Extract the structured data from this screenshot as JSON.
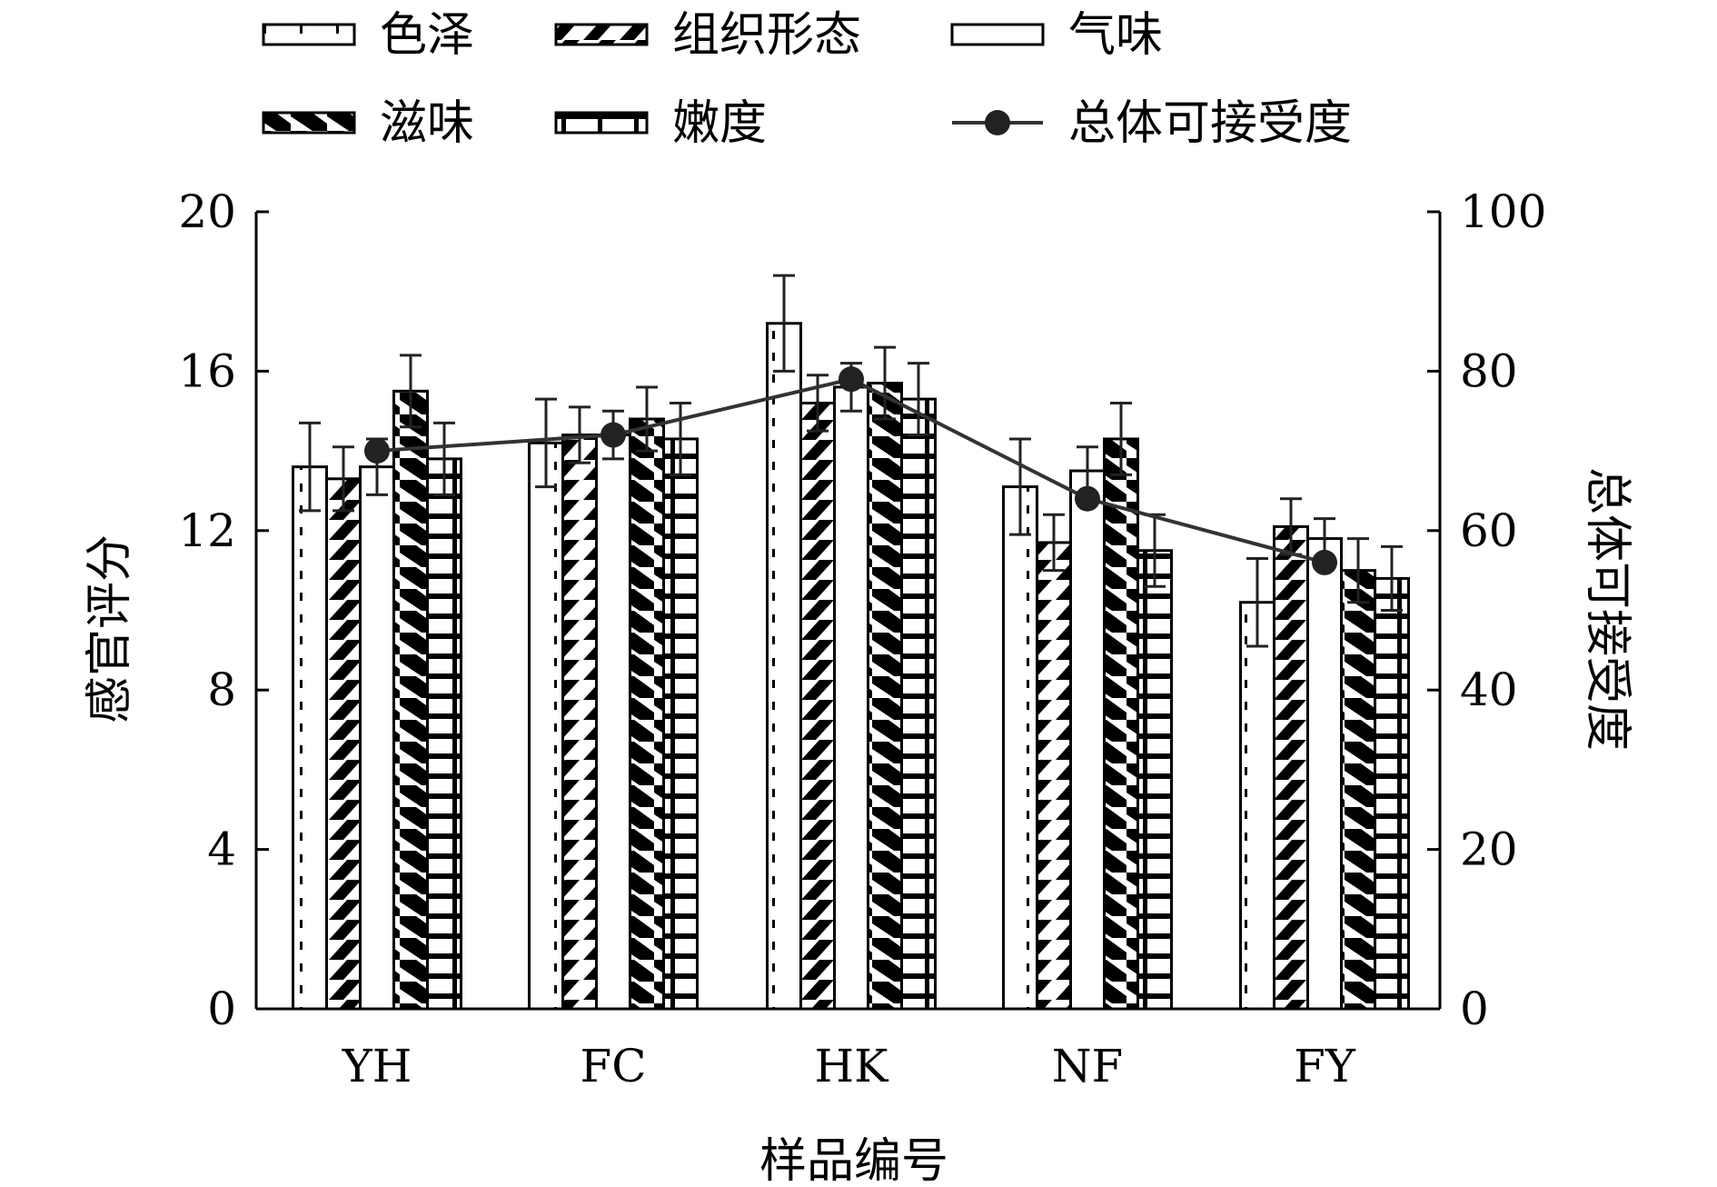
{
  "chart_data": {
    "type": "bar",
    "categories": [
      "YH",
      "FC",
      "HK",
      "NF",
      "FY"
    ],
    "xlabel": "样品编号",
    "ylabel": "感官评分",
    "y2label": "总体可接受度",
    "ylim": [
      0,
      20
    ],
    "y2lim": [
      0,
      100
    ],
    "yticks": [
      "0",
      "4",
      "8",
      "12",
      "16",
      "20"
    ],
    "y2ticks": [
      "0",
      "20",
      "40",
      "60",
      "80",
      "100"
    ],
    "legend_position": "top",
    "series": [
      {
        "name": "色泽",
        "pattern": "dots",
        "values": [
          13.6,
          14.2,
          17.2,
          13.1,
          10.2
        ],
        "errors": [
          1.1,
          1.1,
          1.2,
          1.2,
          1.1
        ]
      },
      {
        "name": "组织形态",
        "pattern": "diagonal",
        "values": [
          13.3,
          14.4,
          15.2,
          11.7,
          12.1
        ],
        "errors": [
          0.8,
          0.7,
          0.7,
          0.7,
          0.7
        ]
      },
      {
        "name": "气味",
        "pattern": "blank",
        "values": [
          13.6,
          14.4,
          15.6,
          13.5,
          11.8
        ],
        "errors": [
          0.7,
          0.6,
          0.6,
          0.6,
          0.5
        ]
      },
      {
        "name": "滋味",
        "pattern": "zigzag",
        "values": [
          15.5,
          14.8,
          15.7,
          14.3,
          11.0
        ],
        "errors": [
          0.9,
          0.8,
          0.9,
          0.9,
          0.8
        ]
      },
      {
        "name": "嫩度",
        "pattern": "brick",
        "values": [
          13.8,
          14.3,
          15.3,
          11.5,
          10.8
        ],
        "errors": [
          0.9,
          0.9,
          0.9,
          0.9,
          0.8
        ]
      }
    ],
    "line_series": {
      "name": "总体可接受度",
      "axis": "right",
      "values": [
        70,
        72,
        79,
        64,
        56
      ]
    }
  }
}
